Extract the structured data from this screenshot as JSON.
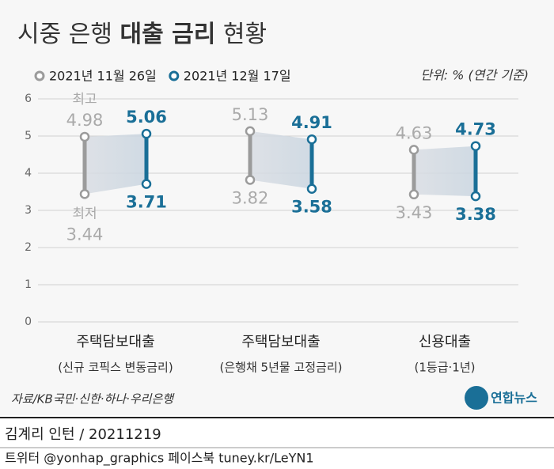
{
  "chart_data": {
    "type": "range",
    "title": [
      "시중 은행 ",
      "대출 금리",
      " 현황"
    ],
    "unit_note": "단위: % (연간 기준)",
    "categories": [
      "주택담보대출",
      "주택담보대출",
      "신용대출"
    ],
    "subcategories": [
      "(신규 코픽스 변동금리)",
      "(은행채 5년물 고정금리)",
      "(1등급·1년)"
    ],
    "series": [
      {
        "name": "2021년 11월 26일",
        "color": "#9b9b9b",
        "high": [
          4.98,
          5.13,
          4.63
        ],
        "low": [
          3.44,
          3.82,
          3.43
        ]
      },
      {
        "name": "2021년 12월 17일",
        "color": "#1a6f97",
        "high": [
          5.06,
          4.91,
          4.73
        ],
        "low": [
          3.71,
          3.58,
          3.38
        ]
      }
    ],
    "annotations": {
      "high": "최고",
      "low": "최저"
    },
    "ylim": [
      0,
      6
    ],
    "yticks": [
      0,
      1,
      2,
      3,
      4,
      5,
      6
    ],
    "grid": true,
    "source": "자료/KB국민·신한·하나·우리은행",
    "logo": "연합뉴스",
    "credit": "김계리 인턴 / 20211219",
    "social": "트위터 @yonhap_graphics  페이스북 tuney.kr/LeYN1"
  }
}
